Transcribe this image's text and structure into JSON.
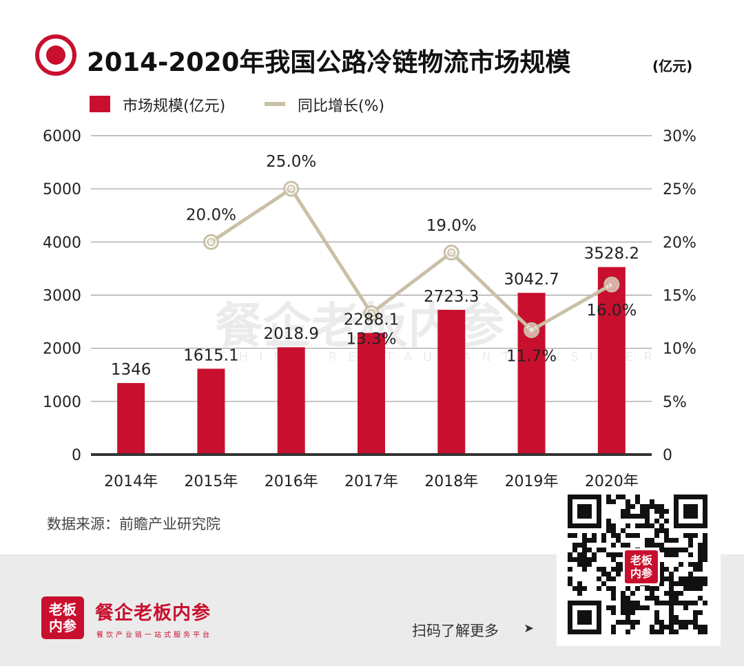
{
  "header": {
    "title": "2014-2020年我国公路冷链物流市场规模",
    "title_unit": "(亿元)"
  },
  "chart_data": {
    "type": "bar",
    "categories": [
      "2014年",
      "2015年",
      "2016年",
      "2017年",
      "2018年",
      "2019年",
      "2020年"
    ],
    "series": [
      {
        "name": "市场规模(亿元)",
        "type": "bar",
        "values": [
          1346,
          1615.1,
          2018.9,
          2288.1,
          2723.3,
          3042.7,
          3528.2
        ],
        "labels": [
          "1346",
          "1615.1",
          "2018.9",
          "2288.1",
          "2723.3",
          "3042.7",
          "3528.2"
        ],
        "axis": "left",
        "color": "#c8102e"
      },
      {
        "name": "同比增长(%)",
        "type": "line",
        "x": [
          "2015年",
          "2016年",
          "2017年",
          "2018年",
          "2019年",
          "2020年"
        ],
        "values": [
          20.0,
          25.0,
          13.3,
          19.0,
          11.7,
          16.0
        ],
        "labels": [
          "20.0%",
          "25.0%",
          "13.3%",
          "19.0%",
          "11.7%",
          "16.0%"
        ],
        "axis": "right",
        "color": "#c9c0a6"
      }
    ],
    "y_left": {
      "ticks": [
        "0",
        "1000",
        "2000",
        "3000",
        "4000",
        "5000",
        "6000"
      ],
      "ylim": [
        0,
        6000
      ]
    },
    "y_right": {
      "ticks": [
        "0",
        "5%",
        "10%",
        "15%",
        "20%",
        "25%",
        "30%"
      ],
      "ylim": [
        0,
        30
      ]
    },
    "grid": true,
    "legend_position": "top-left"
  },
  "source": "数据来源：前瞻产业研究院",
  "watermark": {
    "main": "餐企老板内参",
    "sub": "CHINA RESTAURANT INSIDER"
  },
  "footer": {
    "logo_line1": "老板",
    "logo_line2": "内参",
    "brand_name": "餐企老板内参",
    "brand_slogan": "餐饮产业链一站式服务平台",
    "scan_text": "扫码了解更多",
    "arrow": "➤"
  },
  "qr_badge": {
    "line1": "老板",
    "line2": "内参"
  },
  "colors": {
    "bar": "#c8102e",
    "line": "#c9c0a6",
    "title_icon": "#c8102e",
    "grid": "#9a9a9a",
    "footer_bg": "#ebebeb"
  }
}
